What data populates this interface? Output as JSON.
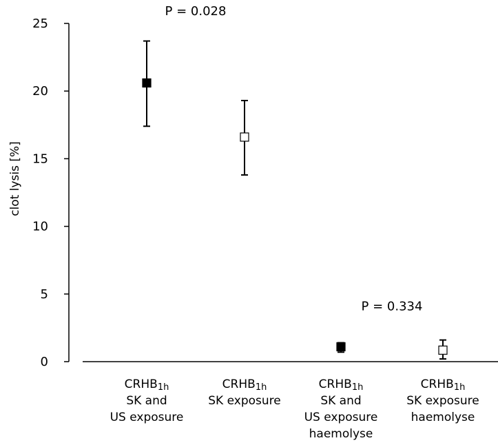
{
  "chart_data": {
    "type": "scatter",
    "ylabel": "clot lysis [%]",
    "ylim": [
      0,
      25
    ],
    "yticks": [
      0,
      5,
      10,
      15,
      20,
      25
    ],
    "grid": false,
    "categories": [
      {
        "main": "CRHB",
        "sub": "1h",
        "lines": [
          "SK and",
          "US exposure"
        ]
      },
      {
        "main": "CRHB",
        "sub": "1h",
        "lines": [
          "SK exposure"
        ]
      },
      {
        "main": "CRHB",
        "sub": "1h",
        "lines": [
          "SK and",
          "US exposure",
          "haemolyse"
        ]
      },
      {
        "main": "CRHB",
        "sub": "1h",
        "lines": [
          "SK exposure",
          "haemolyse"
        ]
      }
    ],
    "points": [
      {
        "value": 20.6,
        "low": 17.4,
        "high": 23.7,
        "fill": "#000000"
      },
      {
        "value": 16.6,
        "low": 13.8,
        "high": 19.3,
        "fill": "#ffffff"
      },
      {
        "value": 1.1,
        "low": 0.7,
        "high": 1.4,
        "fill": "#000000"
      },
      {
        "value": 0.85,
        "low": 0.2,
        "high": 1.6,
        "fill": "#ffffff"
      }
    ],
    "annotations": [
      {
        "text": "P = 0.028",
        "between": [
          0,
          1
        ],
        "at_value": 25.6
      },
      {
        "text": "P = 0.334",
        "between": [
          2,
          3
        ],
        "at_value": 3.8
      }
    ]
  }
}
